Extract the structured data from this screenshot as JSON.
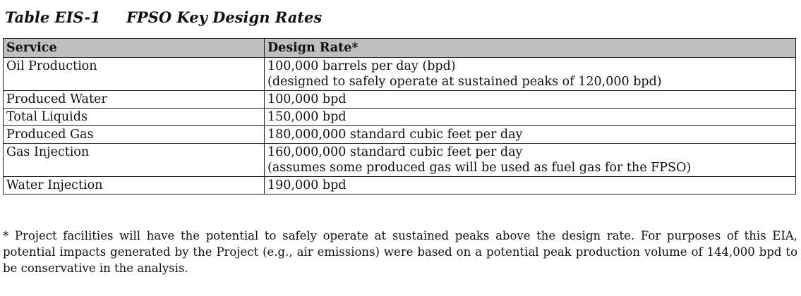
{
  "caption": {
    "number": "Table EIS-1",
    "title": "FPSO Key Design Rates"
  },
  "table": {
    "headers": [
      "Service",
      "Design Rate*"
    ],
    "rows": [
      {
        "service": "Oil Production",
        "rate": [
          "100,000 barrels per day (bpd)",
          "(designed to safely operate at sustained peaks of 120,000 bpd)"
        ]
      },
      {
        "service": "Produced Water",
        "rate": [
          "100,000 bpd"
        ]
      },
      {
        "service": "Total Liquids",
        "rate": [
          "150,000 bpd"
        ]
      },
      {
        "service": "Produced Gas",
        "rate": [
          "180,000,000 standard cubic feet per day"
        ]
      },
      {
        "service": "Gas Injection",
        "rate": [
          "160,000,000 standard cubic feet per day",
          "(assumes some produced gas will be used as fuel gas for the FPSO)"
        ]
      },
      {
        "service": "Water Injection",
        "rate": [
          "190,000 bpd"
        ]
      }
    ]
  },
  "footnote": "* Project facilities will have the potential to safely operate at sustained peaks above the design rate. For purposes of this EIA, potential impacts generated by the Project (e.g., air emissions) were based on a potential peak production volume of 144,000 bpd to be conservative in the analysis."
}
